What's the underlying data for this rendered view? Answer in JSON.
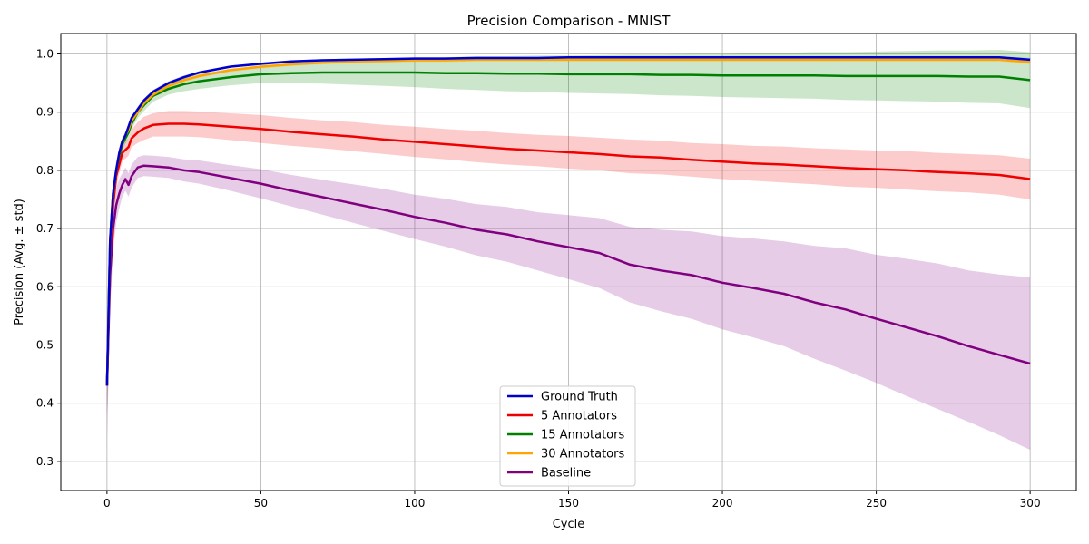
{
  "chart_data": {
    "type": "line",
    "title": "Precision Comparison - MNIST",
    "xlabel": "Cycle",
    "ylabel": "Precision (Avg. ± std)",
    "xlim": [
      -15,
      315
    ],
    "ylim": [
      0.25,
      1.035
    ],
    "x_ticks": [
      0,
      50,
      100,
      150,
      200,
      250,
      300
    ],
    "y_ticks": [
      0.3,
      0.4,
      0.5,
      0.6,
      0.7,
      0.8,
      0.9,
      1.0
    ],
    "grid": true,
    "legend_position": "bottom-center",
    "x": [
      0,
      1,
      2,
      3,
      4,
      5,
      6,
      7,
      8,
      10,
      12,
      15,
      20,
      25,
      30,
      40,
      50,
      60,
      70,
      80,
      90,
      100,
      110,
      120,
      130,
      140,
      150,
      160,
      170,
      180,
      190,
      200,
      210,
      220,
      230,
      240,
      250,
      260,
      270,
      280,
      290,
      300
    ],
    "series": [
      {
        "name": "Ground Truth",
        "color": "#0000cc",
        "values": [
          0.43,
          0.68,
          0.76,
          0.8,
          0.83,
          0.85,
          0.86,
          0.875,
          0.89,
          0.905,
          0.92,
          0.935,
          0.95,
          0.96,
          0.968,
          0.978,
          0.983,
          0.987,
          0.989,
          0.99,
          0.991,
          0.992,
          0.992,
          0.993,
          0.993,
          0.993,
          0.994,
          0.994,
          0.994,
          0.994,
          0.994,
          0.994,
          0.994,
          0.994,
          0.994,
          0.994,
          0.994,
          0.994,
          0.994,
          0.994,
          0.994,
          0.99
        ],
        "std": [
          0.05,
          0.03,
          0.02,
          0.01,
          0.008,
          0.006,
          0.005,
          0.004,
          0.004,
          0.003,
          0.003,
          0.003,
          0.003,
          0.003,
          0.002,
          0.002,
          0.002,
          0.002,
          0.002,
          0.002,
          0.002,
          0.002,
          0.002,
          0.002,
          0.002,
          0.002,
          0.002,
          0.002,
          0.002,
          0.002,
          0.002,
          0.002,
          0.002,
          0.002,
          0.002,
          0.002,
          0.002,
          0.002,
          0.002,
          0.002,
          0.002,
          0.003
        ]
      },
      {
        "name": "5 Annotators",
        "color": "#ee0000",
        "values": [
          0.43,
          0.66,
          0.74,
          0.79,
          0.81,
          0.83,
          0.835,
          0.84,
          0.855,
          0.865,
          0.872,
          0.878,
          0.88,
          0.88,
          0.879,
          0.875,
          0.871,
          0.866,
          0.862,
          0.858,
          0.853,
          0.849,
          0.845,
          0.841,
          0.837,
          0.834,
          0.831,
          0.828,
          0.824,
          0.822,
          0.818,
          0.815,
          0.812,
          0.81,
          0.807,
          0.804,
          0.802,
          0.8,
          0.797,
          0.795,
          0.792,
          0.785
        ],
        "std": [
          0.05,
          0.03,
          0.02,
          0.02,
          0.015,
          0.015,
          0.015,
          0.015,
          0.015,
          0.018,
          0.02,
          0.02,
          0.022,
          0.022,
          0.022,
          0.023,
          0.024,
          0.024,
          0.024,
          0.025,
          0.025,
          0.026,
          0.026,
          0.027,
          0.027,
          0.027,
          0.028,
          0.028,
          0.029,
          0.029,
          0.029,
          0.03,
          0.03,
          0.031,
          0.031,
          0.032,
          0.032,
          0.033,
          0.033,
          0.033,
          0.034,
          0.035
        ]
      },
      {
        "name": "15 Annotators",
        "color": "#008000",
        "values": [
          0.43,
          0.68,
          0.76,
          0.8,
          0.825,
          0.845,
          0.855,
          0.865,
          0.88,
          0.9,
          0.912,
          0.928,
          0.94,
          0.948,
          0.953,
          0.96,
          0.965,
          0.967,
          0.968,
          0.968,
          0.968,
          0.968,
          0.967,
          0.967,
          0.966,
          0.966,
          0.965,
          0.965,
          0.965,
          0.964,
          0.964,
          0.963,
          0.963,
          0.963,
          0.963,
          0.962,
          0.962,
          0.962,
          0.962,
          0.961,
          0.961,
          0.955
        ],
        "std": [
          0.05,
          0.03,
          0.02,
          0.015,
          0.012,
          0.01,
          0.01,
          0.01,
          0.01,
          0.01,
          0.01,
          0.01,
          0.01,
          0.012,
          0.013,
          0.014,
          0.015,
          0.017,
          0.019,
          0.021,
          0.023,
          0.025,
          0.027,
          0.029,
          0.03,
          0.031,
          0.032,
          0.033,
          0.034,
          0.035,
          0.036,
          0.037,
          0.038,
          0.039,
          0.04,
          0.041,
          0.042,
          0.043,
          0.044,
          0.045,
          0.046,
          0.048
        ]
      },
      {
        "name": "30 Annotators",
        "color": "#ffa500",
        "values": [
          0.43,
          0.68,
          0.76,
          0.8,
          0.83,
          0.85,
          0.86,
          0.87,
          0.885,
          0.9,
          0.915,
          0.93,
          0.945,
          0.955,
          0.962,
          0.972,
          0.978,
          0.982,
          0.985,
          0.987,
          0.988,
          0.989,
          0.989,
          0.99,
          0.99,
          0.99,
          0.99,
          0.99,
          0.99,
          0.99,
          0.99,
          0.99,
          0.99,
          0.99,
          0.99,
          0.99,
          0.99,
          0.99,
          0.99,
          0.99,
          0.99,
          0.986
        ],
        "std": [
          0.05,
          0.03,
          0.02,
          0.01,
          0.008,
          0.007,
          0.006,
          0.005,
          0.005,
          0.004,
          0.004,
          0.004,
          0.004,
          0.004,
          0.003,
          0.003,
          0.003,
          0.003,
          0.003,
          0.003,
          0.003,
          0.003,
          0.003,
          0.003,
          0.003,
          0.003,
          0.003,
          0.003,
          0.003,
          0.003,
          0.003,
          0.003,
          0.003,
          0.003,
          0.003,
          0.003,
          0.003,
          0.003,
          0.003,
          0.003,
          0.003,
          0.004
        ]
      },
      {
        "name": "Baseline",
        "color": "#800080",
        "values": [
          0.43,
          0.62,
          0.7,
          0.74,
          0.76,
          0.775,
          0.785,
          0.775,
          0.79,
          0.805,
          0.808,
          0.807,
          0.805,
          0.8,
          0.797,
          0.787,
          0.777,
          0.765,
          0.754,
          0.743,
          0.732,
          0.72,
          0.71,
          0.698,
          0.69,
          0.678,
          0.668,
          0.658,
          0.638,
          0.628,
          0.62,
          0.607,
          0.598,
          0.588,
          0.573,
          0.561,
          0.545,
          0.53,
          0.515,
          0.498,
          0.483,
          0.468
        ],
        "std": [
          0.1,
          0.06,
          0.04,
          0.03,
          0.025,
          0.02,
          0.02,
          0.02,
          0.02,
          0.018,
          0.018,
          0.018,
          0.018,
          0.019,
          0.02,
          0.022,
          0.025,
          0.027,
          0.03,
          0.033,
          0.036,
          0.038,
          0.041,
          0.044,
          0.047,
          0.05,
          0.055,
          0.06,
          0.065,
          0.07,
          0.075,
          0.08,
          0.085,
          0.09,
          0.097,
          0.105,
          0.11,
          0.118,
          0.125,
          0.13,
          0.138,
          0.148
        ]
      }
    ]
  }
}
